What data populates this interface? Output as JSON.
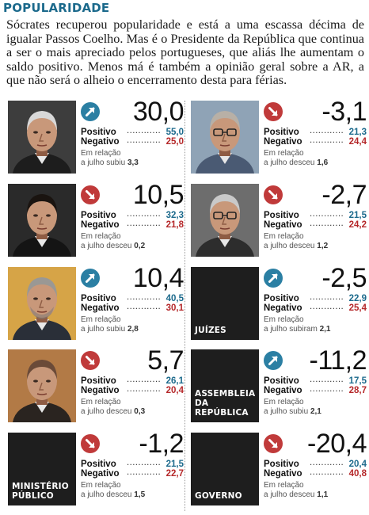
{
  "header": {
    "title": "POPULARIDADE"
  },
  "intro": "Sócrates recuperou popularidade e está a uma escassa décima de igualar Passos Coelho. Mas é o Presidente da República que continua a ser o mais apreciado pelos portugueses, que aliás lhe aumentam o saldo positivo. Menos má é também a opinião geral sobre a AR, a que não será o alheio o encerramento desta para férias.",
  "labels": {
    "positive": "Positivo",
    "negative": "Negativo",
    "relation": "Em relação"
  },
  "cards": [
    {
      "score": "30,0",
      "trend": "up",
      "positive": "55,0",
      "negative": "25,0",
      "note_text": "a julho subiu",
      "note_value": "3,3",
      "photo": "portrait-grey-hair"
    },
    {
      "score": "-3,1",
      "trend": "down",
      "positive": "21,3",
      "negative": "24,4",
      "note_text": "a julho desceu",
      "note_value": "1,6",
      "photo": "portrait-glasses"
    },
    {
      "score": "10,5",
      "trend": "down",
      "positive": "32,3",
      "negative": "21,8",
      "note_text": "a julho desceu",
      "note_value": "0,2",
      "photo": "portrait-dark-hair"
    },
    {
      "score": "-2,7",
      "trend": "down",
      "positive": "21,5",
      "negative": "24,2",
      "note_text": "a julho desceu",
      "note_value": "1,2",
      "photo": "portrait-older-glasses"
    },
    {
      "score": "10,4",
      "trend": "up",
      "positive": "40,5",
      "negative": "30,1",
      "note_text": "a julho subiu",
      "note_value": "2,8",
      "photo": "portrait-grey-beard"
    },
    {
      "score": "-2,5",
      "trend": "up",
      "positive": "22,9",
      "negative": "25,4",
      "note_text": "a julho subiram",
      "note_value": "2,1",
      "institution": "JUÍZES"
    },
    {
      "score": "5,7",
      "trend": "down",
      "positive": "26,1",
      "negative": "20,4",
      "note_text": "a julho desceu",
      "note_value": "0,3",
      "photo": "portrait-balding"
    },
    {
      "score": "-11,2",
      "trend": "up",
      "positive": "17,5",
      "negative": "28,7",
      "note_text": "a julho subiu",
      "note_value": "2,1",
      "institution": "ASSEMBLEIA DA REPÚBLICA"
    },
    {
      "score": "-1,2",
      "trend": "down",
      "positive": "21,5",
      "negative": "22,7",
      "note_text": "a julho desceu",
      "note_value": "1,5",
      "institution": "MINISTÉRIO PÚBLICO"
    },
    {
      "score": "-20,4",
      "trend": "down",
      "positive": "20,4",
      "negative": "40,8",
      "note_text": "a julho desceu",
      "note_value": "1,1",
      "institution": "GOVERNO"
    }
  ]
}
